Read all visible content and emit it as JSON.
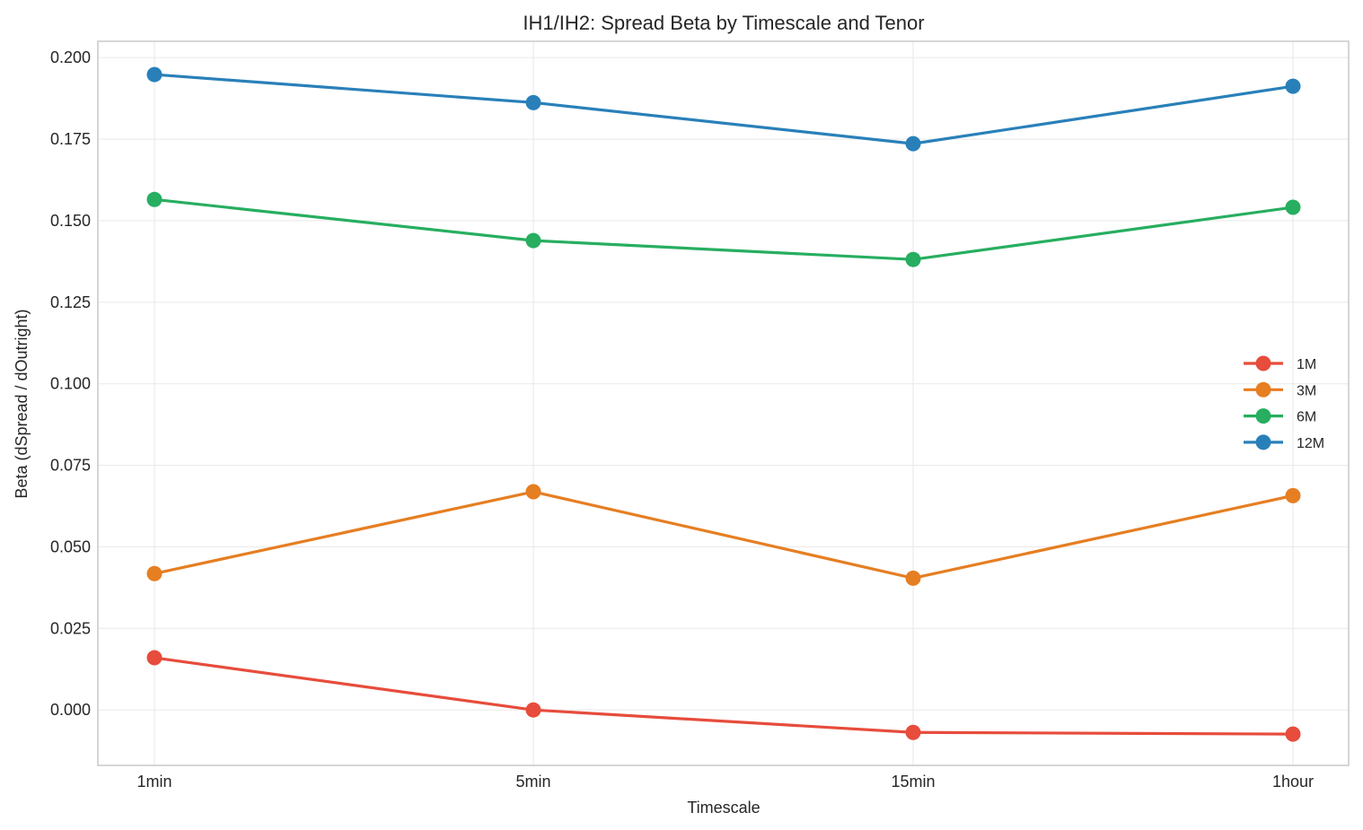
{
  "chart_data": {
    "type": "line",
    "title": "IH1/IH2: Spread Beta by Timescale and Tenor",
    "xlabel": "Timescale",
    "ylabel": "Beta (dSpread / dOutright)",
    "categories": [
      "1min",
      "5min",
      "15min",
      "1hour"
    ],
    "ylim": [
      -0.017,
      0.205
    ],
    "yticks": [
      0.0,
      0.025,
      0.05,
      0.075,
      0.1,
      0.125,
      0.15,
      0.175,
      0.2
    ],
    "ytick_labels": [
      "0.000",
      "0.025",
      "0.050",
      "0.075",
      "0.100",
      "0.125",
      "0.150",
      "0.175",
      "0.200"
    ],
    "grid": true,
    "legend_position": "center right",
    "series": [
      {
        "name": "1M",
        "color": "#e74c3c",
        "values": [
          0.016,
          0.0,
          -0.0069,
          -0.0074
        ]
      },
      {
        "name": "3M",
        "color": "#e67e22",
        "values": [
          0.0418,
          0.0669,
          0.0404,
          0.0657
        ]
      },
      {
        "name": "6M",
        "color": "#27ae60",
        "values": [
          0.1565,
          0.1439,
          0.1381,
          0.1541
        ]
      },
      {
        "name": "12M",
        "color": "#2980b9",
        "values": [
          0.1948,
          0.1862,
          0.1736,
          0.1912
        ]
      }
    ]
  }
}
